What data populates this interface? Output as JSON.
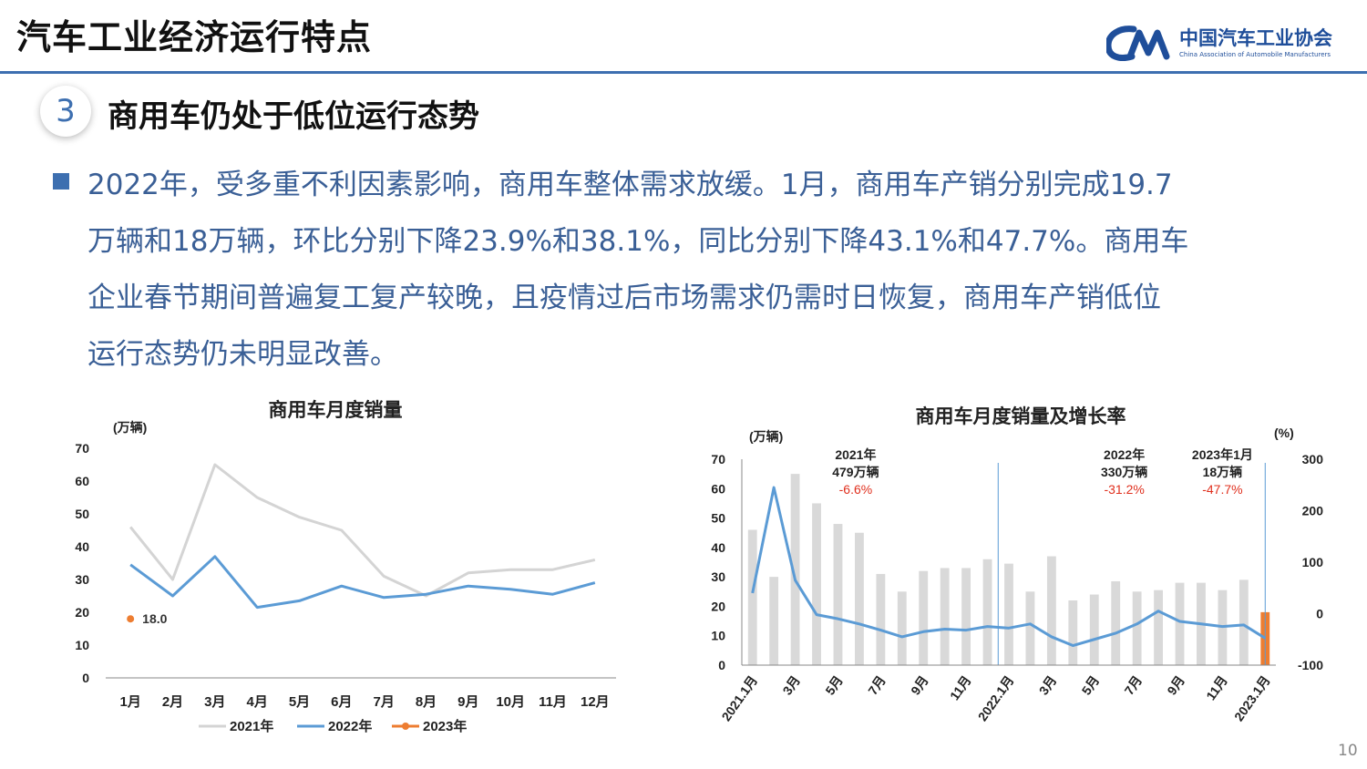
{
  "header": {
    "title": "汽车工业经济运行特点",
    "logo_cn": "中国汽车工业协会",
    "logo_en": "China Association of Automobile Manufacturers"
  },
  "section": {
    "number": "3",
    "title": "商用车仍处于低位运行态势"
  },
  "body": {
    "lines": [
      "2022年，受多重不利因素影响，商用车整体需求放缓。1月，商用车产销分别完成19.7",
      "万辆和18万辆，环比分别下降23.9%和38.1%，同比分别下降43.1%和47.7%。商用车",
      "企业春节期间普遍复工复产较晚，且疫情过后市场需求仍需时日恢复，商用车产销低位",
      "运行态势仍未明显改善。"
    ]
  },
  "page_number": "10",
  "colors": {
    "accent": "#3d6fb0",
    "series_2021": "#d4d4d4",
    "series_2022": "#5b9bd5",
    "series_2023": "#ed7d31",
    "bar_gray": "#d9d9d9",
    "red_text": "#e0301e"
  },
  "chart_data": [
    {
      "type": "line",
      "title": "商用车月度销量",
      "ylabel": "(万辆)",
      "ylim": [
        0,
        70
      ],
      "yticks": [
        0,
        10,
        20,
        30,
        40,
        50,
        60,
        70
      ],
      "categories": [
        "1月",
        "2月",
        "3月",
        "4月",
        "5月",
        "6月",
        "7月",
        "8月",
        "9月",
        "10月",
        "11月",
        "12月"
      ],
      "series": [
        {
          "name": "2021年",
          "values": [
            46,
            30,
            65,
            55,
            49,
            45,
            31,
            25,
            32,
            33,
            33,
            36
          ]
        },
        {
          "name": "2022年",
          "values": [
            34.5,
            25,
            37,
            21.5,
            23.5,
            28,
            24.5,
            25.5,
            28,
            27,
            25.5,
            29
          ]
        },
        {
          "name": "2023年",
          "values": [
            18.0,
            null,
            null,
            null,
            null,
            null,
            null,
            null,
            null,
            null,
            null,
            null
          ]
        }
      ],
      "annotations": [
        {
          "text": "18.0"
        }
      ],
      "legend": "bottom"
    },
    {
      "type": "bar",
      "title": "商用车月度销量及增长率",
      "ylabel_left": "(万辆)",
      "ylabel_right": "(%)",
      "ylim_left": [
        0,
        70
      ],
      "ylim_right": [
        -100,
        300
      ],
      "yticks_left": [
        0,
        10,
        20,
        30,
        40,
        50,
        60,
        70
      ],
      "yticks_right": [
        -100,
        0,
        100,
        200,
        300
      ],
      "x_tick_labels": [
        "2021.1月",
        "3月",
        "5月",
        "7月",
        "9月",
        "11月",
        "2022.1月",
        "3月",
        "5月",
        "7月",
        "9月",
        "11月",
        "2023.1月"
      ],
      "x": [
        "2021-01",
        "2021-02",
        "2021-03",
        "2021-04",
        "2021-05",
        "2021-06",
        "2021-07",
        "2021-08",
        "2021-09",
        "2021-10",
        "2021-11",
        "2021-12",
        "2022-01",
        "2022-02",
        "2022-03",
        "2022-04",
        "2022-05",
        "2022-06",
        "2022-07",
        "2022-08",
        "2022-09",
        "2022-10",
        "2022-11",
        "2022-12",
        "2023-01"
      ],
      "series": [
        {
          "values": [
            46,
            30,
            65,
            55,
            48,
            45,
            31,
            25,
            32,
            33,
            33,
            36,
            34.5,
            25,
            37,
            22,
            24,
            28.5,
            25,
            25.5,
            28,
            28,
            25.5,
            29,
            18
          ]
        },
        {
          "values": [
            40,
            245,
            65,
            -2,
            -10,
            -20,
            -32,
            -45,
            -35,
            -30,
            -32,
            -25,
            -28,
            -20,
            -45,
            -62,
            -50,
            -38,
            -20,
            5,
            -15,
            -20,
            -25,
            -22,
            -47.7
          ]
        }
      ],
      "highlight_bar": {
        "x": "2023-01",
        "value": 18
      },
      "annotations": [
        {
          "lines": [
            "2021年",
            "479万辆",
            "-6.6%"
          ]
        },
        {
          "lines": [
            "2022年",
            "330万辆",
            "-31.2%"
          ]
        },
        {
          "lines": [
            "2023年1月",
            "18万辆",
            "-47.7%"
          ]
        }
      ]
    }
  ]
}
